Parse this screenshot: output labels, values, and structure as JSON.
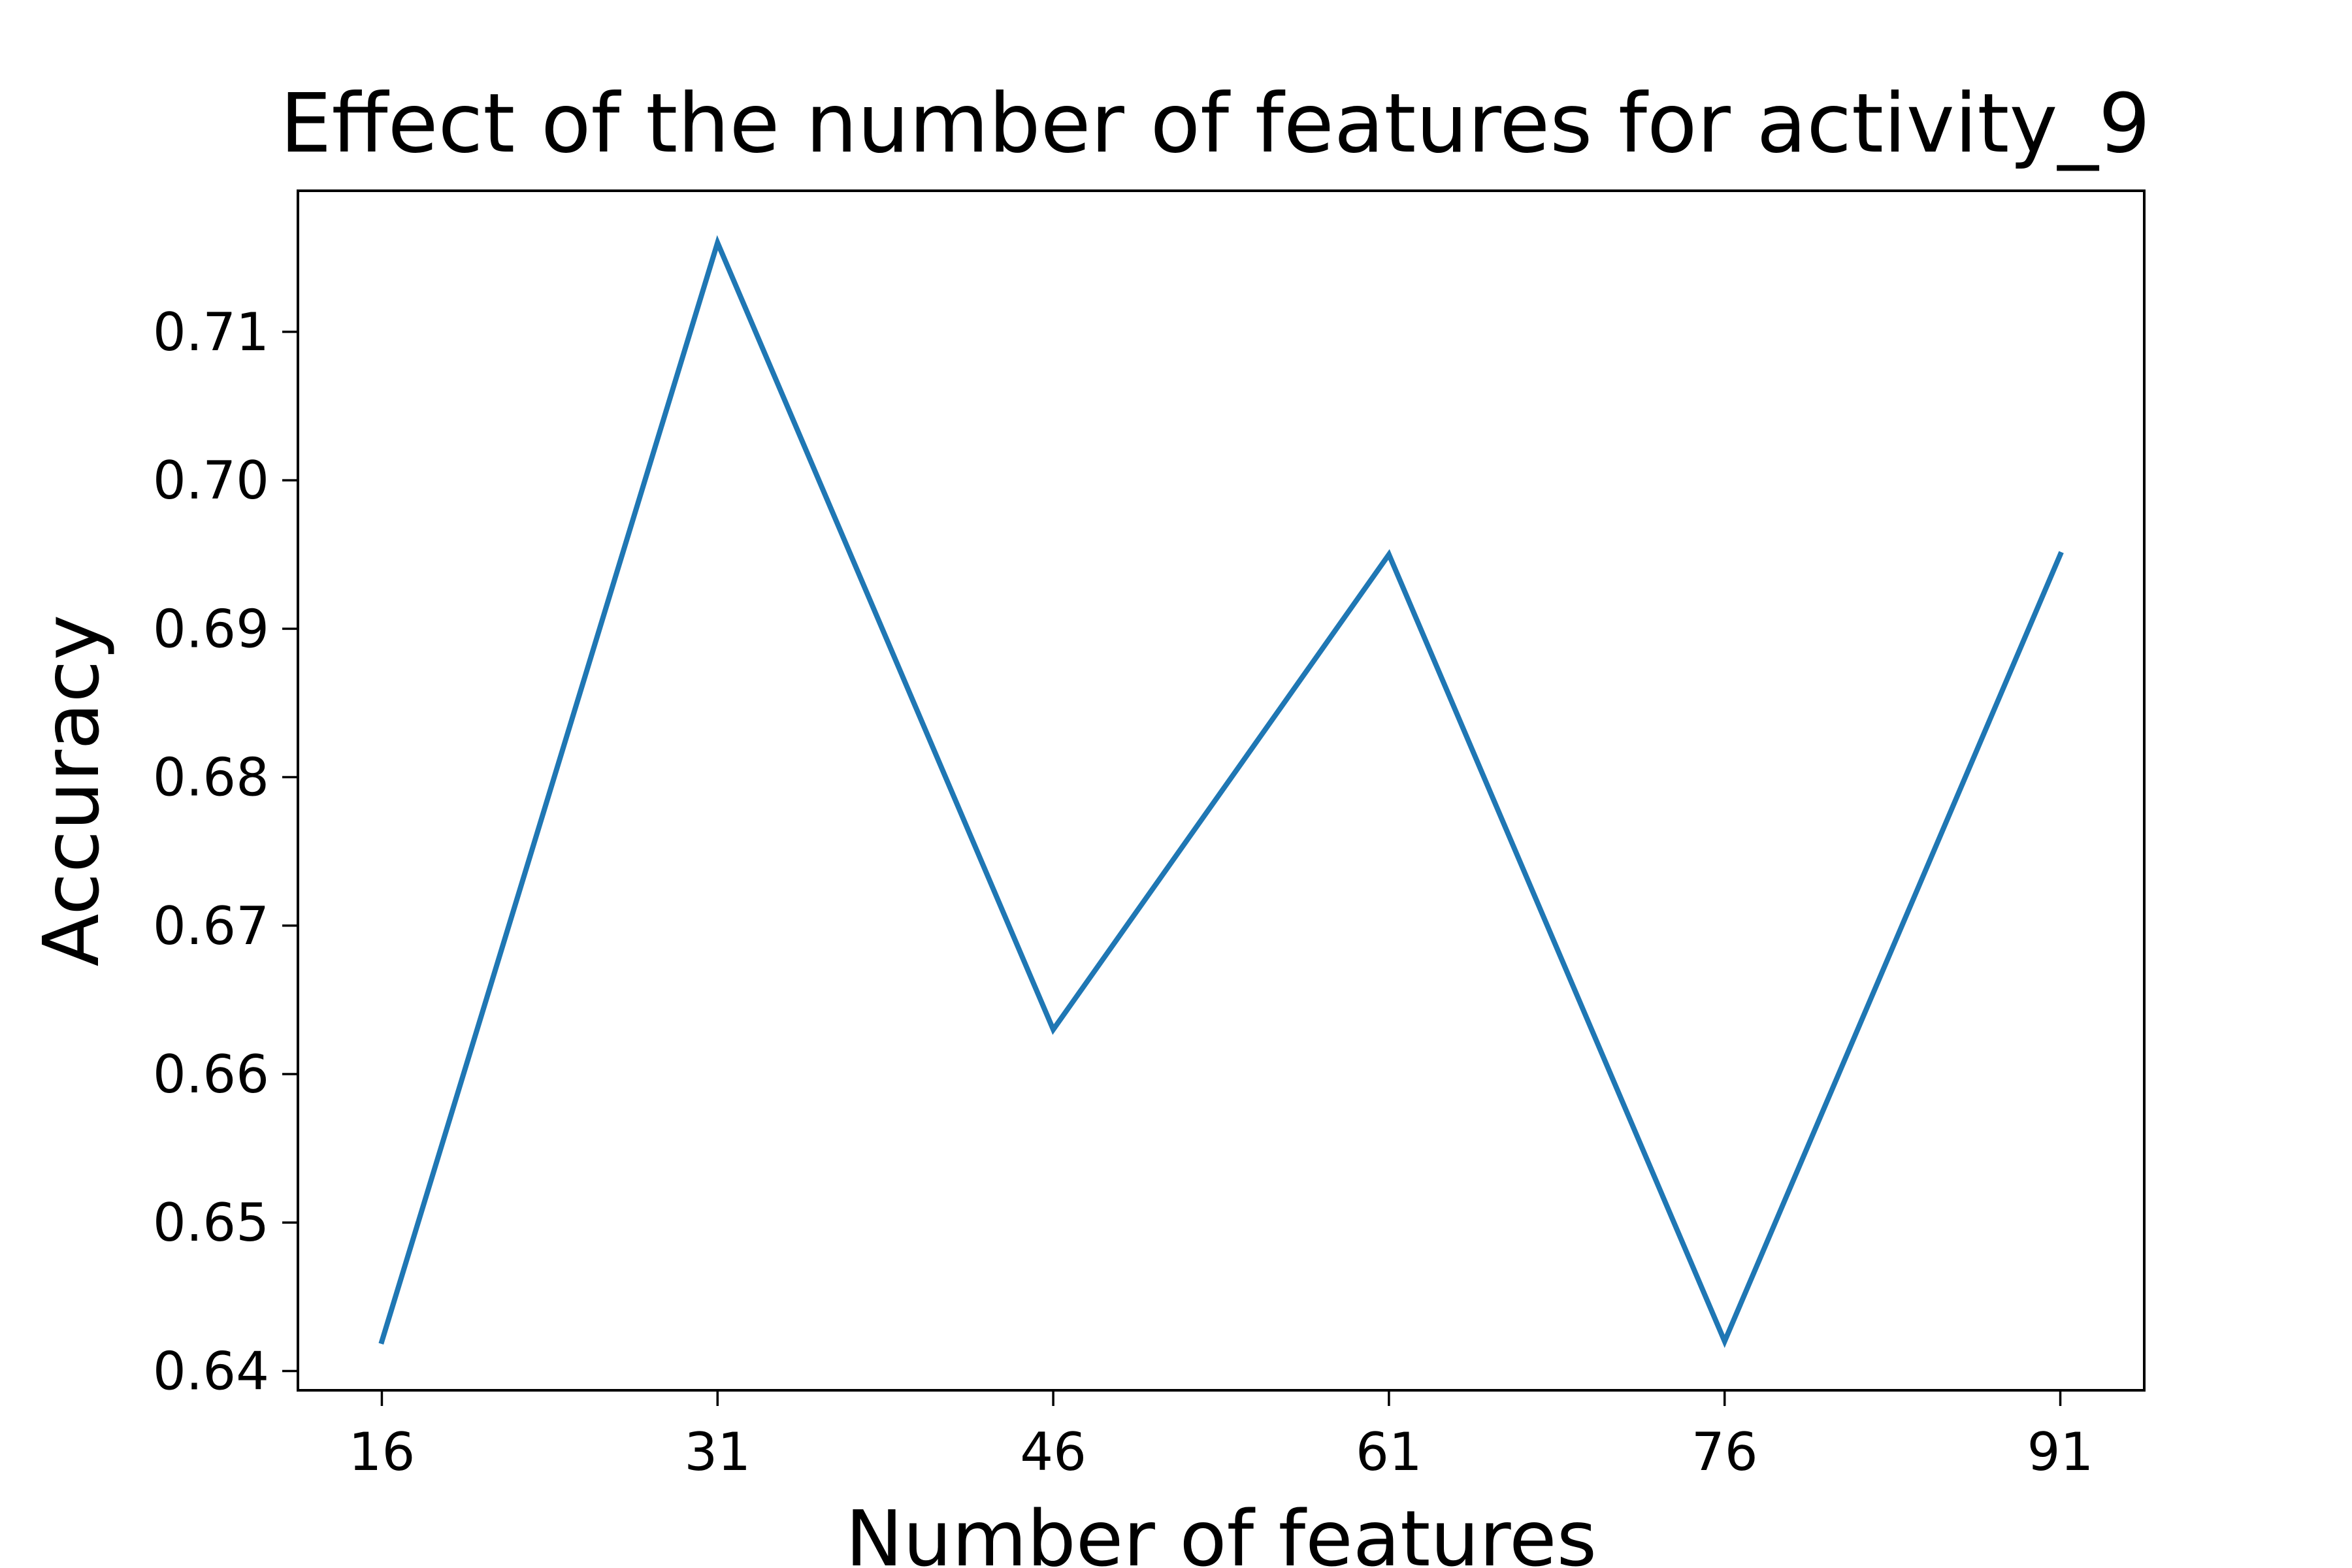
{
  "chart_data": {
    "type": "line",
    "title": "Effect of the number of features for activity_9",
    "xlabel": "Number of features",
    "ylabel": "Accuracy",
    "x": [
      16,
      31,
      46,
      61,
      76,
      91
    ],
    "xticks": [
      "16",
      "31",
      "46",
      "61",
      "76",
      "91"
    ],
    "yticks": [
      "0.64",
      "0.65",
      "0.66",
      "0.67",
      "0.68",
      "0.69",
      "0.70",
      "0.71"
    ],
    "ytick_values": [
      0.64,
      0.65,
      0.66,
      0.67,
      0.68,
      0.69,
      0.7,
      0.71
    ],
    "xlim": [
      12.25,
      94.75
    ],
    "ylim": [
      0.6387,
      0.7195
    ],
    "grid": false,
    "series": [
      {
        "values": [
          0.642,
          0.716,
          0.663,
          0.695,
          0.642,
          0.695
        ],
        "color": "#1f77b4"
      }
    ]
  }
}
